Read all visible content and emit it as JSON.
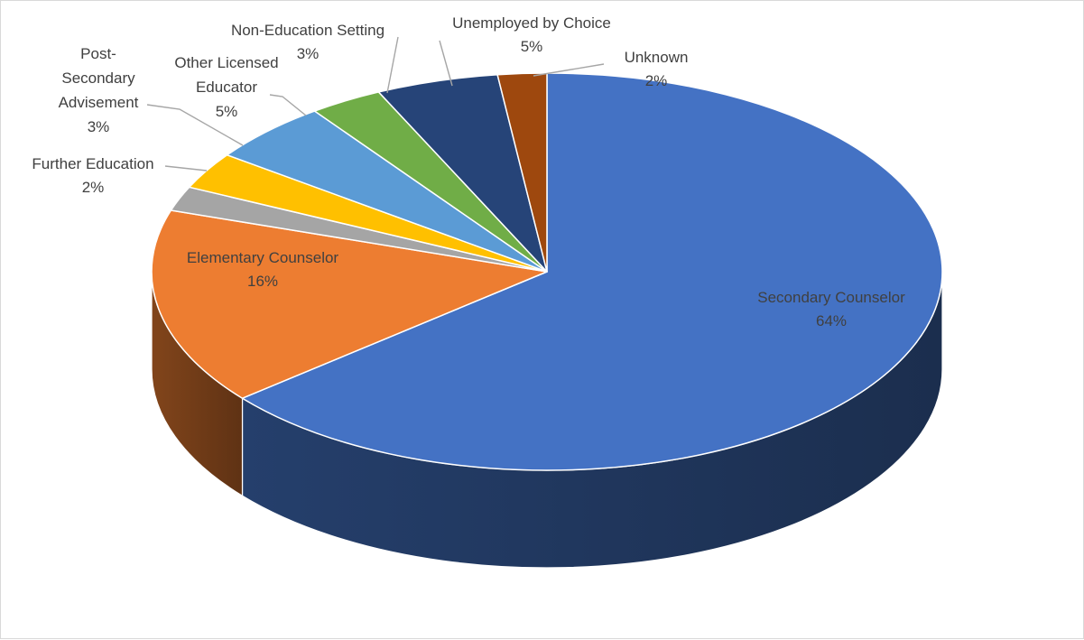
{
  "chart_data": {
    "type": "pie",
    "style": "3d",
    "title": "",
    "legend": "none",
    "data_labels": "category name and percentage",
    "slices": [
      {
        "name": "Secondary Counselor",
        "value": 64,
        "label_lines": [
          "Secondary Counselor",
          "64%"
        ],
        "color": "#4472C4"
      },
      {
        "name": "Elementary Counselor",
        "value": 16,
        "label_lines": [
          "Elementary Counselor",
          "16%"
        ],
        "color": "#ED7D31"
      },
      {
        "name": "Further Education",
        "value": 2,
        "label_lines": [
          "Further Education",
          "2%"
        ],
        "color": "#A5A5A5"
      },
      {
        "name": "Post-Secondary Advisement",
        "value": 3,
        "label_lines": [
          "Post-",
          "Secondary",
          "Advisement",
          "3%"
        ],
        "color": "#FFC000"
      },
      {
        "name": "Other Licensed Educator",
        "value": 5,
        "label_lines": [
          "Other Licensed",
          "Educator",
          "5%"
        ],
        "color": "#5B9BD5"
      },
      {
        "name": "Non-Education Setting",
        "value": 3,
        "label_lines": [
          "Non-Education Setting",
          "3%"
        ],
        "color": "#70AD47"
      },
      {
        "name": "Unemployed by Choice",
        "value": 5,
        "label_lines": [
          "Unemployed by Choice",
          "5%"
        ],
        "color": "#264478"
      },
      {
        "name": "Unknown",
        "value": 2,
        "label_lines": [
          "Unknown",
          "2%"
        ],
        "color": "#9E480E"
      }
    ]
  }
}
